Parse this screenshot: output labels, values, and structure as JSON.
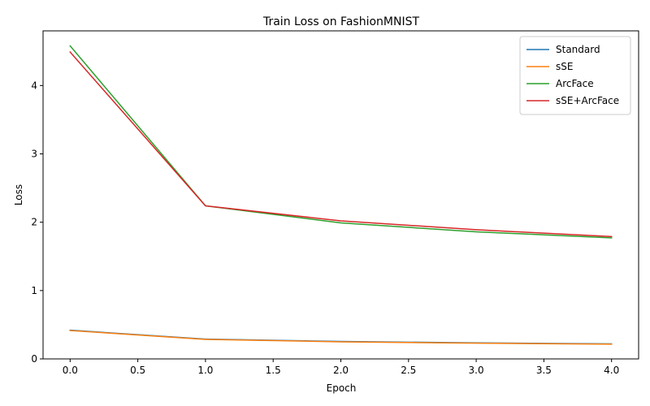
{
  "chart_data": {
    "type": "line",
    "title": "Train Loss on FashionMNIST",
    "xlabel": "Epoch",
    "ylabel": "Loss",
    "x": [
      0,
      1,
      2,
      3,
      4
    ],
    "xlim": [
      -0.2,
      4.2
    ],
    "ylim": [
      0,
      4.8
    ],
    "xticks": [
      0.0,
      0.5,
      1.0,
      1.5,
      2.0,
      2.5,
      3.0,
      3.5,
      4.0
    ],
    "xtick_labels": [
      "0.0",
      "0.5",
      "1.0",
      "1.5",
      "2.0",
      "2.5",
      "3.0",
      "3.5",
      "4.0"
    ],
    "yticks": [
      0,
      1,
      2,
      3,
      4
    ],
    "ytick_labels": [
      "0",
      "1",
      "2",
      "3",
      "4"
    ],
    "grid": false,
    "legend": "top-right",
    "series": [
      {
        "name": "Standard",
        "color": "#1f77b4",
        "values": [
          0.42,
          0.29,
          0.255,
          0.235,
          0.22
        ]
      },
      {
        "name": "sSE",
        "color": "#ff7f0e",
        "values": [
          0.415,
          0.285,
          0.25,
          0.23,
          0.215
        ]
      },
      {
        "name": "ArcFace",
        "color": "#2ca02c",
        "values": [
          4.58,
          2.24,
          1.99,
          1.86,
          1.77
        ]
      },
      {
        "name": "sSE+ArcFace",
        "color": "#d62728",
        "values": [
          4.49,
          2.24,
          2.02,
          1.89,
          1.79
        ]
      }
    ]
  }
}
